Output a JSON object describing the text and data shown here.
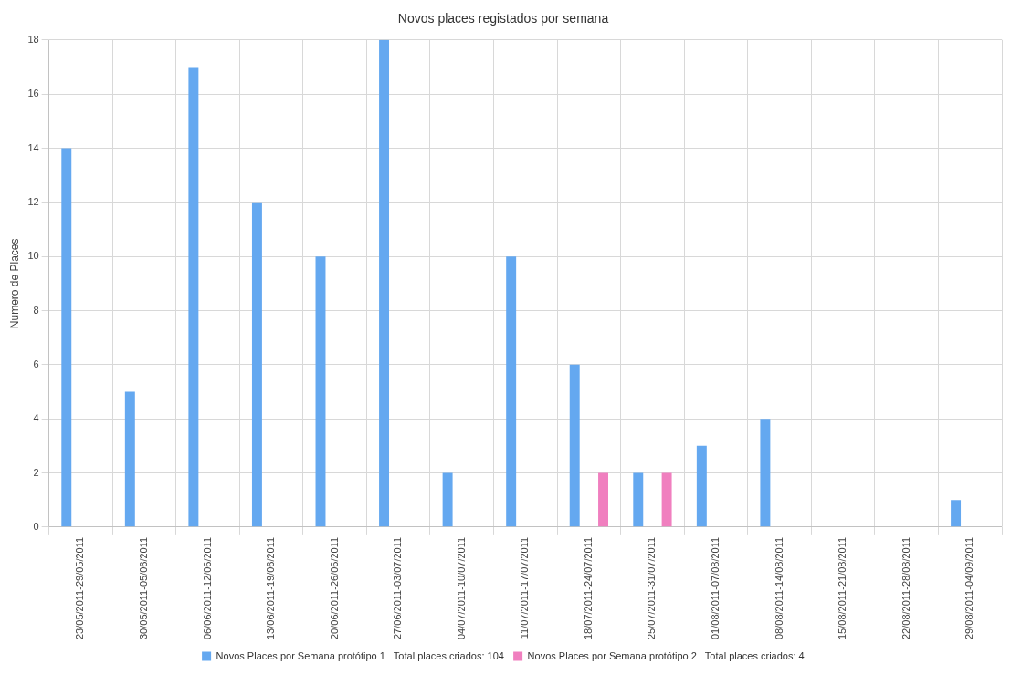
{
  "chart_data": {
    "type": "bar",
    "title": "Novos places registados por semana",
    "ylabel": "Numero de Places",
    "categories": [
      "23/05/2011-29/05/2011",
      "30/05/2011-05/06/2011",
      "06/06/2011-12/06/2011",
      "13/06/2011-19/06/2011",
      "20/06/2011-26/06/2011",
      "27/06/2011-03/07/2011",
      "04/07/2011-10/07/2011",
      "11/07/2011-17/07/2011",
      "18/07/2011-24/07/2011",
      "25/07/2011-31/07/2011",
      "01/08/2011-07/08/2011",
      "08/08/2011-14/08/2011",
      "15/08/2011-21/08/2011",
      "22/08/2011-28/08/2011",
      "29/08/2011-04/09/2011"
    ],
    "series": [
      {
        "name": "Novos Places por Semana protótipo 1   Total places criados: 104",
        "color": "#64a8f0",
        "values": [
          14,
          5,
          17,
          12,
          10,
          18,
          2,
          10,
          6,
          2,
          3,
          4,
          0,
          0,
          1
        ]
      },
      {
        "name": "Novos Places por Semana protótipo 2   Total places criados: 4",
        "color": "#f07fbf",
        "values": [
          0,
          0,
          0,
          0,
          0,
          0,
          0,
          0,
          2,
          2,
          0,
          0,
          0,
          0,
          0
        ]
      }
    ],
    "ylim": [
      0,
      18
    ],
    "yticks": [
      0,
      2,
      4,
      6,
      8,
      10,
      12,
      14,
      16,
      18
    ],
    "grid": true,
    "legend": "bottom"
  }
}
